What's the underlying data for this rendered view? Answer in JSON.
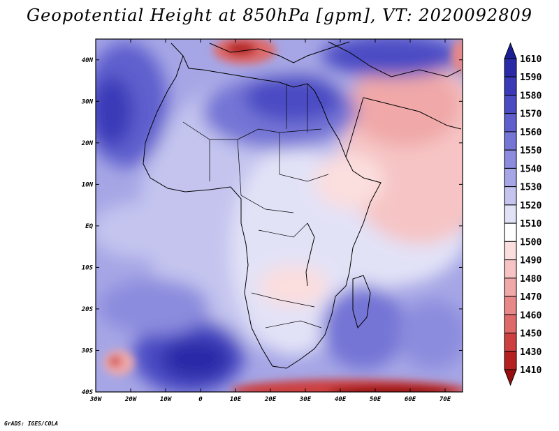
{
  "title": "Geopotential Height at 850hPa [gpm], VT: 2020092809",
  "footer": "GrADS: IGES/COLA",
  "map": {
    "lon_range": [
      -30,
      75
    ],
    "lat_range": [
      -40,
      45
    ],
    "lon_ticks": [
      "30W",
      "20W",
      "10W",
      "0",
      "10E",
      "20E",
      "30E",
      "40E",
      "50E",
      "60E",
      "70E"
    ],
    "lat_ticks": [
      "40N",
      "30N",
      "20N",
      "10N",
      "EQ",
      "10S",
      "20S",
      "30S",
      "40S"
    ]
  },
  "colorbar": {
    "labels": [
      "1610",
      "1590",
      "1580",
      "1570",
      "1560",
      "1550",
      "1540",
      "1530",
      "1520",
      "1510",
      "1500",
      "1490",
      "1480",
      "1470",
      "1460",
      "1450",
      "1430",
      "1410"
    ],
    "colors": [
      "#1e1e96",
      "#2a2aa8",
      "#3a3ab8",
      "#4b4bc4",
      "#5f5fce",
      "#7575d6",
      "#8c8cde",
      "#a6a6e6",
      "#c4c4ef",
      "#e2e2f7",
      "#ffffff",
      "#fbdede",
      "#f6c4c4",
      "#f0a8a8",
      "#e88888",
      "#de6a6a",
      "#cc4040",
      "#b52020",
      "#990d0d"
    ]
  }
}
